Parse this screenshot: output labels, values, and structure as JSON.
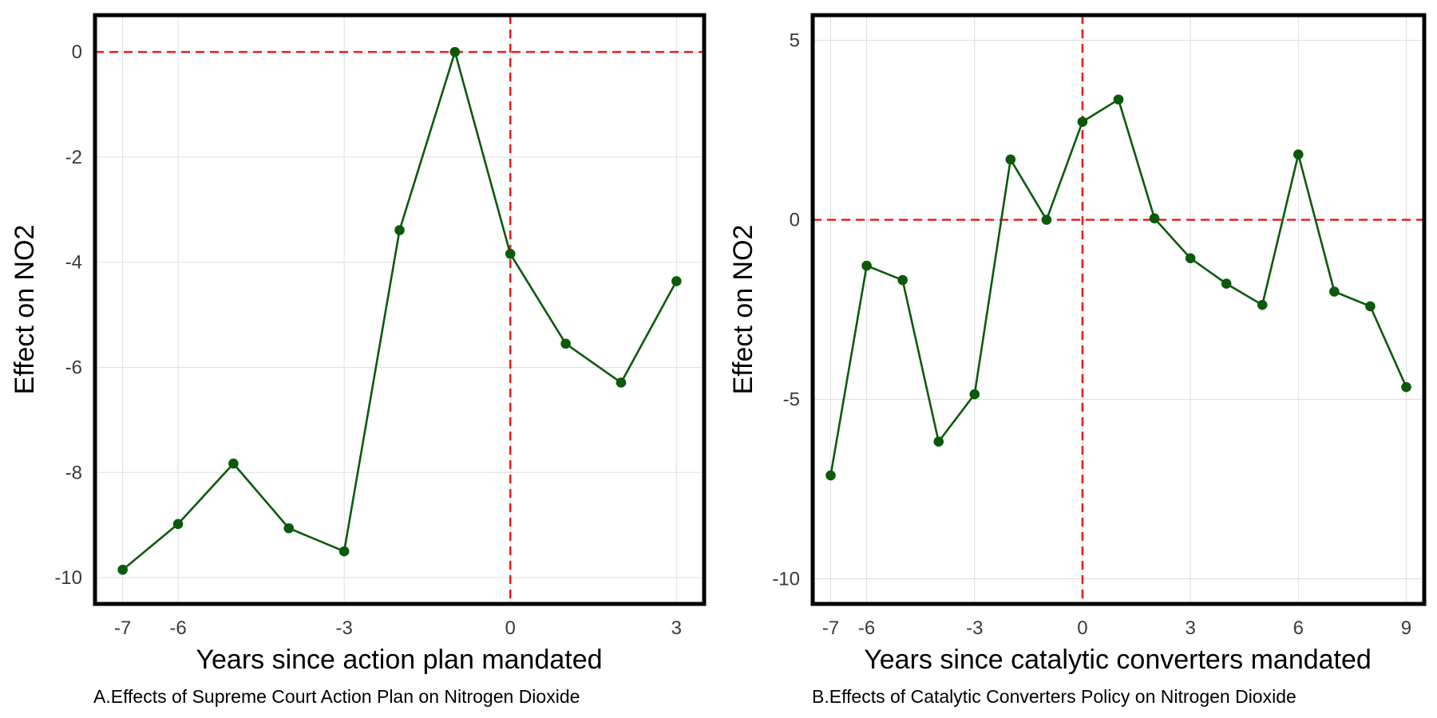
{
  "colors": {
    "series": "#0b5a0b",
    "reference": "#ee1c1c",
    "grid": "#dddddd",
    "frame": "#000000"
  },
  "chart_data": [
    {
      "type": "line",
      "xlabel": "Years since action plan mandated",
      "ylabel": "Effect on NO2",
      "caption": "A.Effects of Supreme Court Action Plan on Nitrogen Dioxide",
      "xlim": [
        -7.5,
        3.5
      ],
      "ylim": [
        -10.5,
        0.7
      ],
      "xticks": [
        -7,
        -6,
        -3,
        0,
        3
      ],
      "yticks": [
        0,
        -2,
        -4,
        -6,
        -8,
        -10
      ],
      "vline": 0,
      "hline": 0,
      "grid": true,
      "x": [
        -7,
        -6,
        -5,
        -4,
        -3,
        -2,
        -1,
        0,
        1,
        2,
        3
      ],
      "y": [
        -9.85,
        -8.98,
        -7.83,
        -9.06,
        -9.5,
        -3.39,
        0.0,
        -3.84,
        -5.55,
        -6.29,
        -4.36
      ]
    },
    {
      "type": "line",
      "xlabel": "Years since catalytic converters mandated",
      "ylabel": "Effect on NO2",
      "caption": "B.Effects of Catalytic Converters Policy on Nitrogen Dioxide",
      "xlim": [
        -7.5,
        9.5
      ],
      "ylim": [
        -10.7,
        5.7
      ],
      "xticks": [
        -7,
        -6,
        -3,
        0,
        3,
        6,
        9
      ],
      "yticks": [
        5,
        0,
        -5,
        -10
      ],
      "vline": 0,
      "hline": 0,
      "grid": true,
      "x": [
        -7,
        -6,
        -5,
        -4,
        -3,
        -2,
        -1,
        0,
        1,
        2,
        3,
        4,
        5,
        6,
        7,
        8,
        9
      ],
      "y": [
        -7.12,
        -1.28,
        -1.68,
        -6.18,
        -4.86,
        1.68,
        0.0,
        2.73,
        3.35,
        0.04,
        -1.07,
        -1.78,
        -2.37,
        1.82,
        -2.0,
        -2.41,
        -4.66
      ]
    }
  ]
}
